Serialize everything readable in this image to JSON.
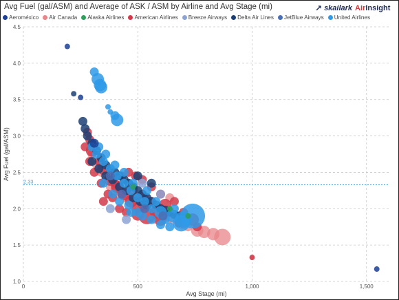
{
  "title": "Avg Fuel (gal/ASM) and Average of ASK / ASM by Airline and Avg Stage (mi)",
  "logo": {
    "part1": "skailark",
    "part2": "Air",
    "part3": "Insight",
    "tagline": ""
  },
  "legend": [
    {
      "name": "Aeroméxico",
      "color": "#1c3f94"
    },
    {
      "name": "Air Canada",
      "color": "#e8868a"
    },
    {
      "name": "Alaska Airlines",
      "color": "#2e9e5b"
    },
    {
      "name": "American Airlines",
      "color": "#d13a4a"
    },
    {
      "name": "Breeze Airways",
      "color": "#8da3d4"
    },
    {
      "name": "Delta Air Lines",
      "color": "#1b3f73"
    },
    {
      "name": "JetBlue Airways",
      "color": "#4a6fb5"
    },
    {
      "name": "United Airlines",
      "color": "#2f9ae8"
    }
  ],
  "chart_data": {
    "type": "scatter",
    "title": "Avg Fuel (gal/ASM) and Average of ASK / ASM by Airline and Avg Stage (mi)",
    "xlabel": "Avg Stage (mi)",
    "ylabel": "Avg Fuel (gal/ASM)",
    "xlim": [
      0,
      1600
    ],
    "ylim": [
      1.0,
      4.5
    ],
    "xticks": [
      {
        "v": 0,
        "label": "0"
      },
      {
        "v": 500,
        "label": "500"
      },
      {
        "v": 1000,
        "label": "1,000"
      },
      {
        "v": 1500,
        "label": "1,500"
      }
    ],
    "yticks": [
      {
        "v": 1.0,
        "label": "1.0"
      },
      {
        "v": 1.5,
        "label": "1.5"
      },
      {
        "v": 2.0,
        "label": "2.0"
      },
      {
        "v": 2.5,
        "label": "2.5"
      },
      {
        "v": 3.0,
        "label": "3.0"
      },
      {
        "v": 3.5,
        "label": "3.5"
      },
      {
        "v": 4.0,
        "label": "4.0"
      },
      {
        "v": 4.5,
        "label": "4.5"
      }
    ],
    "reference_line": {
      "y": 2.33,
      "label": "2.33"
    },
    "grid": true,
    "legend_position": "top",
    "series": [
      {
        "name": "Aeroméxico",
        "points": [
          [
            192,
            4.23,
            1
          ],
          [
            1545,
            1.17,
            1
          ],
          [
            250,
            3.53,
            1
          ],
          [
            310,
            2.9,
            2
          ]
        ]
      },
      {
        "name": "Air Canada",
        "points": [
          [
            870,
            1.61,
            4
          ],
          [
            830,
            1.65,
            3
          ],
          [
            790,
            1.68,
            3
          ],
          [
            760,
            1.7,
            3
          ],
          [
            720,
            1.75,
            2
          ],
          [
            700,
            1.8,
            3
          ],
          [
            680,
            1.85,
            2
          ],
          [
            650,
            1.88,
            3
          ],
          [
            620,
            1.9,
            2
          ],
          [
            600,
            1.95,
            2
          ],
          [
            560,
            2.0,
            2
          ],
          [
            520,
            2.05,
            2
          ],
          [
            480,
            2.1,
            2
          ],
          [
            450,
            2.15,
            2
          ],
          [
            420,
            2.2,
            2
          ],
          [
            400,
            2.25,
            2
          ],
          [
            380,
            2.3,
            2
          ],
          [
            360,
            2.4,
            2
          ],
          [
            340,
            2.5,
            2
          ],
          [
            320,
            2.6,
            2
          ],
          [
            300,
            2.75,
            2
          ],
          [
            1000,
            1.33,
            0
          ],
          [
            640,
            2.15,
            2
          ],
          [
            580,
            1.85,
            2
          ]
        ]
      },
      {
        "name": "Alaska Airlines",
        "points": [
          [
            480,
            2.3,
            1
          ],
          [
            640,
            2.0,
            1
          ],
          [
            720,
            1.9,
            1
          ]
        ]
      },
      {
        "name": "American Airlines",
        "points": [
          [
            540,
            1.9,
            4
          ],
          [
            580,
            1.95,
            3
          ],
          [
            620,
            2.05,
            3
          ],
          [
            500,
            2.0,
            3
          ],
          [
            470,
            2.1,
            3
          ],
          [
            440,
            2.2,
            3
          ],
          [
            410,
            2.3,
            3
          ],
          [
            380,
            2.4,
            3
          ],
          [
            350,
            2.55,
            3
          ],
          [
            330,
            2.65,
            2
          ],
          [
            300,
            2.8,
            3
          ],
          [
            290,
            2.95,
            2
          ],
          [
            280,
            3.05,
            2
          ],
          [
            740,
            1.85,
            3
          ],
          [
            700,
            1.95,
            2
          ],
          [
            660,
            2.1,
            2
          ],
          [
            600,
            2.2,
            2
          ],
          [
            560,
            2.3,
            2
          ],
          [
            520,
            2.4,
            2
          ],
          [
            490,
            2.45,
            2
          ],
          [
            460,
            2.5,
            2
          ],
          [
            430,
            2.45,
            2
          ],
          [
            400,
            2.35,
            2
          ],
          [
            370,
            2.2,
            2
          ],
          [
            350,
            2.1,
            2
          ],
          [
            560,
            2.1,
            2
          ],
          [
            620,
            1.95,
            2
          ],
          [
            450,
            1.95,
            2
          ],
          [
            420,
            2.0,
            2
          ],
          [
            390,
            2.15,
            2
          ],
          [
            520,
            2.15,
            3
          ],
          [
            480,
            2.25,
            2
          ],
          [
            340,
            2.35,
            2
          ],
          [
            310,
            2.5,
            2
          ],
          [
            290,
            2.65,
            2
          ],
          [
            270,
            2.85,
            2
          ],
          [
            760,
            1.75,
            2
          ],
          [
            680,
            1.8,
            2
          ],
          [
            600,
            1.85,
            3
          ],
          [
            500,
            1.92,
            3
          ],
          [
            1000,
            1.33,
            1
          ]
        ]
      },
      {
        "name": "Breeze Airways",
        "points": [
          [
            450,
            1.85,
            2
          ],
          [
            520,
            2.35,
            2
          ],
          [
            380,
            2.0,
            2
          ],
          [
            600,
            2.2,
            2
          ]
        ]
      },
      {
        "name": "Delta Air Lines",
        "points": [
          [
            220,
            3.58,
            1
          ],
          [
            260,
            3.2,
            2
          ],
          [
            270,
            3.1,
            2
          ],
          [
            280,
            3.0,
            2
          ],
          [
            300,
            2.9,
            2
          ],
          [
            320,
            2.8,
            2
          ],
          [
            340,
            2.7,
            2
          ],
          [
            360,
            2.6,
            2
          ],
          [
            380,
            2.55,
            2
          ],
          [
            400,
            2.5,
            2
          ],
          [
            420,
            2.45,
            2
          ],
          [
            440,
            2.4,
            2
          ],
          [
            460,
            2.35,
            2
          ],
          [
            480,
            2.3,
            2
          ],
          [
            500,
            2.25,
            2
          ],
          [
            520,
            2.2,
            2
          ],
          [
            540,
            2.15,
            2
          ],
          [
            560,
            2.1,
            2
          ],
          [
            580,
            2.05,
            2
          ],
          [
            600,
            2.0,
            2
          ],
          [
            620,
            1.98,
            2
          ],
          [
            640,
            1.95,
            2
          ],
          [
            660,
            1.92,
            2
          ],
          [
            680,
            1.9,
            2
          ],
          [
            700,
            1.88,
            2
          ],
          [
            300,
            2.65,
            2
          ],
          [
            330,
            2.55,
            2
          ],
          [
            360,
            2.45,
            2
          ],
          [
            390,
            2.4,
            2
          ],
          [
            420,
            2.3,
            2
          ],
          [
            450,
            2.25,
            2
          ],
          [
            480,
            2.15,
            2
          ],
          [
            510,
            2.1,
            2
          ],
          [
            540,
            2.05,
            2
          ],
          [
            560,
            2.35,
            2
          ],
          [
            500,
            2.45,
            2
          ]
        ]
      },
      {
        "name": "JetBlue Airways",
        "points": [
          [
            430,
            2.2,
            2
          ],
          [
            530,
            2.0,
            2
          ],
          [
            610,
            1.9,
            2
          ],
          [
            380,
            2.45,
            2
          ]
        ]
      },
      {
        "name": "United Airlines",
        "points": [
          [
            310,
            3.88,
            2
          ],
          [
            325,
            3.78,
            3
          ],
          [
            335,
            3.7,
            3
          ],
          [
            340,
            3.67,
            3
          ],
          [
            370,
            3.4,
            1
          ],
          [
            380,
            3.33,
            1
          ],
          [
            400,
            3.28,
            2
          ],
          [
            410,
            3.22,
            3
          ],
          [
            300,
            2.85,
            2
          ],
          [
            320,
            2.75,
            2
          ],
          [
            350,
            2.65,
            2
          ],
          [
            380,
            2.55,
            2
          ],
          [
            410,
            2.45,
            2
          ],
          [
            440,
            2.35,
            2
          ],
          [
            470,
            2.25,
            2
          ],
          [
            500,
            2.15,
            2
          ],
          [
            530,
            2.1,
            2
          ],
          [
            560,
            2.0,
            2
          ],
          [
            600,
            1.95,
            3
          ],
          [
            650,
            1.9,
            3
          ],
          [
            700,
            1.85,
            4
          ],
          [
            740,
            1.9,
            5
          ],
          [
            690,
            1.8,
            4
          ],
          [
            620,
            1.85,
            2
          ],
          [
            660,
            2.0,
            2
          ],
          [
            580,
            2.1,
            2
          ],
          [
            540,
            2.25,
            2
          ],
          [
            480,
            2.35,
            2
          ],
          [
            440,
            2.5,
            2
          ],
          [
            400,
            2.6,
            2
          ],
          [
            360,
            2.75,
            2
          ],
          [
            330,
            2.85,
            2
          ],
          [
            460,
            2.05,
            2
          ],
          [
            420,
            2.1,
            2
          ],
          [
            390,
            2.2,
            2
          ],
          [
            350,
            2.35,
            2
          ],
          [
            500,
            1.95,
            2
          ],
          [
            560,
            1.85,
            2
          ],
          [
            640,
            1.75,
            2
          ],
          [
            600,
            1.78,
            2
          ],
          [
            520,
            1.9,
            2
          ],
          [
            470,
            1.95,
            2
          ]
        ]
      }
    ]
  }
}
